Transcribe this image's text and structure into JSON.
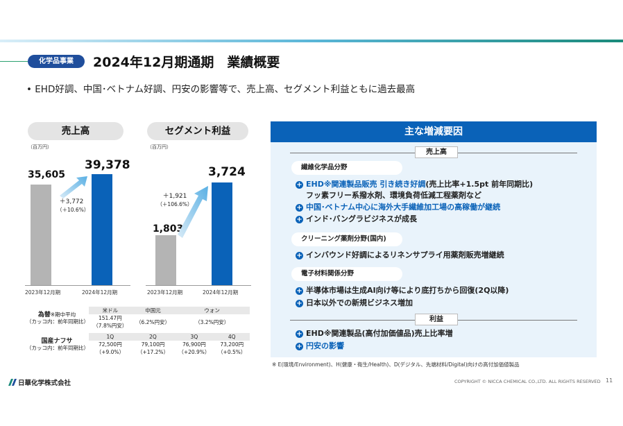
{
  "header": {
    "category": "化学品事業",
    "title": "2024年12月期通期　業績概要",
    "bullet": "EHD好調、中国･ベトナム好調、円安の影響等で、売上高、セグメント利益ともに過去最高"
  },
  "sales_chart": {
    "title": "売上高",
    "unit": "（百万円）",
    "prev_label": "2023年12月期",
    "curr_label": "2024年12月期",
    "prev_value": "35,605",
    "curr_value": "39,378",
    "delta": "＋3,772",
    "delta_pct": "（＋10.6%）"
  },
  "segment_chart": {
    "title": "セグメント利益",
    "unit": "（百万円）",
    "prev_label": "2023年12月期",
    "curr_label": "2024年12月期",
    "prev_value": "1,803",
    "curr_value": "3,724",
    "delta": "＋1,921",
    "delta_pct": "（＋106.6%）"
  },
  "chart_data": [
    {
      "type": "bar",
      "title": "売上高",
      "categories": [
        "2023年12月期",
        "2024年12月期"
      ],
      "values": [
        35605,
        39378
      ],
      "ylabel": "（百万円）"
    },
    {
      "type": "bar",
      "title": "セグメント利益",
      "categories": [
        "2023年12月期",
        "2024年12月期"
      ],
      "values": [
        1803,
        3724
      ],
      "ylabel": "（百万円）"
    }
  ],
  "fx_table": {
    "fx_label_bold": "為替",
    "fx_label_note": "※期中平均",
    "fx_label_sub": "（カッコ内：前年同期比）",
    "currencies": [
      "米ドル",
      "中国元",
      "ウォン"
    ],
    "rates": [
      "151.47円",
      "",
      ""
    ],
    "changes": [
      "（7.8%円安）",
      "（6.2%円安）",
      "（3.2%円安）"
    ],
    "naphtha_label": "国産ナフサ",
    "naphtha_sub": "（カッコ内：前年同期比）",
    "quarters": [
      "1Q",
      "2Q",
      "3Q",
      "4Q"
    ],
    "prices": [
      "72,500円",
      "79,100円",
      "76,900円",
      "73,200円"
    ],
    "price_changes": [
      "（+9.0%）",
      "（+17.2%）",
      "（+20.9%）",
      "（+0.5%）"
    ]
  },
  "panel": {
    "title": "主な増減要因",
    "section_sales": "売上高",
    "fiber_group": "繊維化学品分野",
    "fiber_item1_blue": "EHD※関連製品販売 引き続き好調",
    "fiber_item1_rest": "(売上比率+1.5pt 前年同期比)",
    "fiber_item1_line2": "フッ素フリー系撥水剤、環境負荷低減工程薬剤など",
    "fiber_item2": "中国･ベトナム中心に海外大手繊維加工場の高稼働が継続",
    "fiber_item3": "インド･バングラビジネスが成長",
    "cleaning_group": "クリーニング薬剤分野(国内)",
    "cleaning_item1": "インバウンド好調によるリネンサプライ用薬剤販売増継続",
    "electronic_group": "電子材料関係分野",
    "electronic_item1": "半導体市場は生成AI向け等により底打ちから回復(2Q以降)",
    "electronic_item2": "日本以外での新規ビジネス増加",
    "section_profit": "利益",
    "profit_item1": "EHD※関連製品(高付加価値品)売上比率増",
    "profit_item2": "円安の影響"
  },
  "footnote": "※ E(環境/Environment)、H(健康・衛生/Health)、D(デジタル、先端材料/Digital)向けの高付加価値製品",
  "footer": {
    "company": "日華化学株式会社",
    "copyright": "COPYRIGHT © NICCA CHEMICAL CO.,LTD. ALL RIGHTS RESERVED",
    "page": "11"
  },
  "colors": {
    "brand_blue": "#0a62b8",
    "navy": "#1f4e9c",
    "bar_grey": "#b4b4b4",
    "panel_bg": "#e9f3fb"
  }
}
